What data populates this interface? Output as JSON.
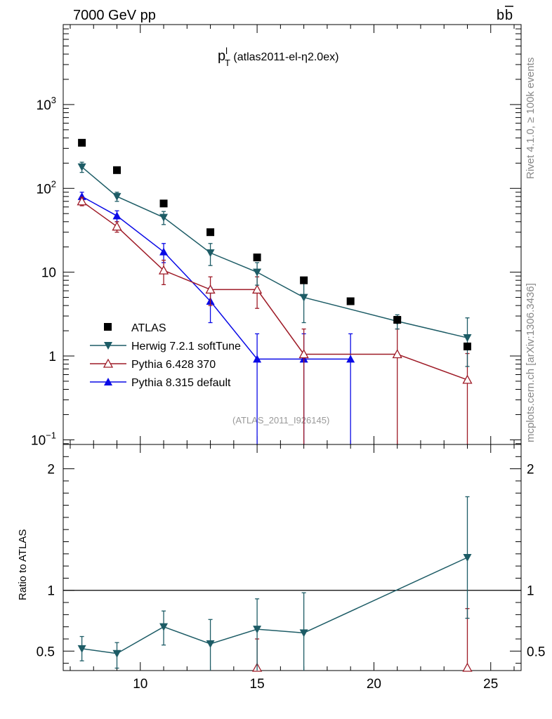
{
  "header": {
    "left": "7000 GeV pp",
    "right_main": "b",
    "right_bar": "b"
  },
  "side_labels": {
    "rivet": "Rivet 4.1.0, ≥ 100k events",
    "mcplots": "mcplots.cern.ch [arXiv:1306.3436]"
  },
  "chart_data": [
    {
      "type": "scatter",
      "title_main": "p",
      "title_sup": "l",
      "title_sub": "T",
      "title_rest": " (atlas2011-el-η2.0ex)",
      "watermark": "(ATLAS_2011_I926145)",
      "xlabel": "",
      "ylabel": "",
      "yscale": "log",
      "ylim": [
        0.088,
        9000
      ],
      "xlim": [
        6.7,
        26.3
      ],
      "y_ticks": [
        {
          "value": 0.1,
          "base": "10",
          "exp": "−1"
        },
        {
          "value": 1,
          "base": "1",
          "exp": ""
        },
        {
          "value": 10,
          "base": "10",
          "exp": ""
        },
        {
          "value": 100,
          "base": "10",
          "exp": "2"
        },
        {
          "value": 1000,
          "base": "10",
          "exp": "3"
        }
      ],
      "legend": [
        "ATLAS",
        "Herwig 7.2.1 softTune",
        "Pythia 6.428 370",
        "Pythia 8.315 default"
      ],
      "series": [
        {
          "name": "ATLAS",
          "color": "#000000",
          "marker": "square",
          "line": false,
          "x": [
            7.5,
            9,
            11,
            13,
            15,
            17,
            19,
            21,
            24
          ],
          "y": [
            350,
            165,
            66,
            30,
            15,
            8,
            4.5,
            2.7,
            1.3
          ]
        },
        {
          "name": "Herwig 7.2.1 softTune",
          "color": "#1d5c66",
          "marker": "triangle-down",
          "line": true,
          "x": [
            7.5,
            9,
            11,
            13,
            15,
            17,
            21,
            24
          ],
          "y": [
            180,
            80,
            45,
            17,
            10,
            5,
            2.6,
            1.65
          ],
          "err_lo": [
            25,
            10,
            8,
            5,
            3,
            2.5,
            0.5,
            0.9
          ],
          "err_hi": [
            25,
            10,
            8,
            5,
            3,
            2.5,
            0.5,
            1.2
          ]
        },
        {
          "name": "Pythia 6.428 370",
          "color": "#9e1a26",
          "marker": "triangle-up-open",
          "line": true,
          "x": [
            7.5,
            9,
            11,
            13,
            15,
            17,
            21,
            24
          ],
          "y": [
            70,
            35,
            10.5,
            6.2,
            6.2,
            1.05,
            1.05,
            0.52
          ],
          "err_lo": [
            8,
            5,
            3.4,
            2.2,
            2.5,
            2,
            2,
            2
          ],
          "err_hi": [
            8,
            5,
            3.4,
            2.6,
            2.6,
            1.05,
            1.05,
            0.55
          ]
        },
        {
          "name": "Pythia 8.315 default",
          "color": "#0a0ae6",
          "marker": "triangle-up",
          "line": true,
          "x": [
            7.5,
            9,
            11,
            13,
            15,
            17,
            19
          ],
          "y": [
            80,
            47,
            17.5,
            4.5,
            0.92,
            0.92,
            0.92
          ],
          "err_lo": [
            10,
            7,
            4.5,
            2,
            2,
            2,
            2
          ],
          "err_hi": [
            10,
            7,
            4.5,
            2,
            0.92,
            0.92,
            0.92
          ]
        }
      ]
    },
    {
      "type": "scatter",
      "title": "",
      "xlabel": "",
      "ylabel": "Ratio to ATLAS",
      "ylim": [
        0.34,
        2.2
      ],
      "xlim": [
        6.7,
        26.3
      ],
      "x_ticks": [
        10,
        15,
        20,
        25
      ],
      "y_ticks": [
        0.5,
        1,
        2
      ],
      "reference_line": 1,
      "series": [
        {
          "name": "Herwig 7.2.1 softTune",
          "color": "#1d5c66",
          "marker": "triangle-down",
          "line": true,
          "x": [
            7.5,
            9,
            11,
            13,
            15,
            17,
            24
          ],
          "y": [
            0.52,
            0.48,
            0.7,
            0.56,
            0.68,
            0.65,
            1.27
          ],
          "err_lo": [
            0.1,
            0.12,
            0.15,
            0.25,
            0.35,
            0.35,
            0.5
          ],
          "err_hi": [
            0.1,
            0.09,
            0.13,
            0.2,
            0.25,
            0.33,
            0.5
          ]
        },
        {
          "name": "Pythia 6.428 370",
          "color": "#9e1a26",
          "marker": "triangle-up-open",
          "line": false,
          "x": [
            15,
            24
          ],
          "y": [
            0.32,
            0.33
          ],
          "err_lo": [
            0.1,
            0.1
          ],
          "err_hi": [
            0.28,
            0.52
          ]
        }
      ]
    }
  ]
}
